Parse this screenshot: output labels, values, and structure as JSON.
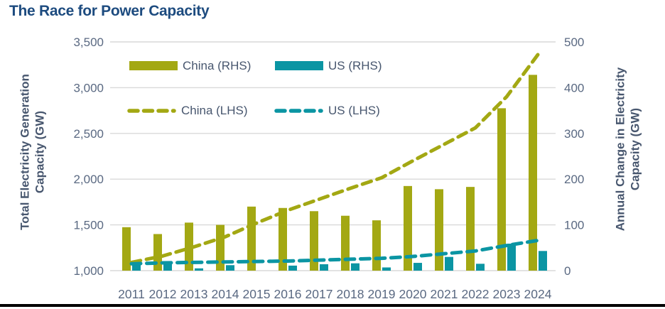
{
  "title": "The Race for Power Capacity",
  "colors": {
    "title": "#1d4b7f",
    "axis_text": "#47566e",
    "tick_text": "#5a6982",
    "gridline": "#d9d9d9",
    "china": "#a3a813",
    "us": "#0b95a3"
  },
  "chart_data": {
    "type": "combo-bar-line",
    "grid": "horizontal",
    "legend_position": "top-inside",
    "categories": [
      "2011",
      "2012",
      "2013",
      "2014",
      "2015",
      "2016",
      "2017",
      "2018",
      "2019",
      "2020",
      "2021",
      "2022",
      "2023",
      "2024"
    ],
    "series": [
      {
        "name": "China (RHS)",
        "type": "bar",
        "axis": "right",
        "color": "#a3a813",
        "values": [
          95,
          80,
          105,
          100,
          140,
          137,
          130,
          120,
          110,
          185,
          178,
          183,
          355,
          428
        ]
      },
      {
        "name": "US (RHS)",
        "type": "bar",
        "axis": "right",
        "color": "#0b95a3",
        "values": [
          15,
          15,
          5,
          12,
          0,
          11,
          14,
          16,
          7,
          17,
          30,
          15,
          59,
          43
        ]
      },
      {
        "name": "China (LHS)",
        "type": "line",
        "style": "dashed",
        "axis": "left",
        "color": "#a3a813",
        "values": [
          1090,
          1160,
          1260,
          1370,
          1520,
          1660,
          1780,
          1900,
          2015,
          2200,
          2380,
          2560,
          2900,
          3360
        ]
      },
      {
        "name": "US (LHS)",
        "type": "line",
        "style": "dashed",
        "axis": "left",
        "color": "#0b95a3",
        "values": [
          1075,
          1085,
          1090,
          1095,
          1100,
          1105,
          1115,
          1125,
          1135,
          1155,
          1185,
          1215,
          1275,
          1330
        ]
      }
    ],
    "left_axis": {
      "label_line1": "Total Electricity Generation",
      "label_line2": "Capacity (GW)",
      "min": 1000,
      "max": 3500,
      "step": 500,
      "ticks": [
        "1,000",
        "1,500",
        "2,000",
        "2,500",
        "3,000",
        "3,500"
      ]
    },
    "right_axis": {
      "label_line1": "Annual Change in Electricity",
      "label_line2": "Capacity (GW)",
      "min": 0,
      "max": 500,
      "step": 100,
      "ticks": [
        "0",
        "100",
        "200",
        "300",
        "400",
        "500"
      ]
    }
  }
}
